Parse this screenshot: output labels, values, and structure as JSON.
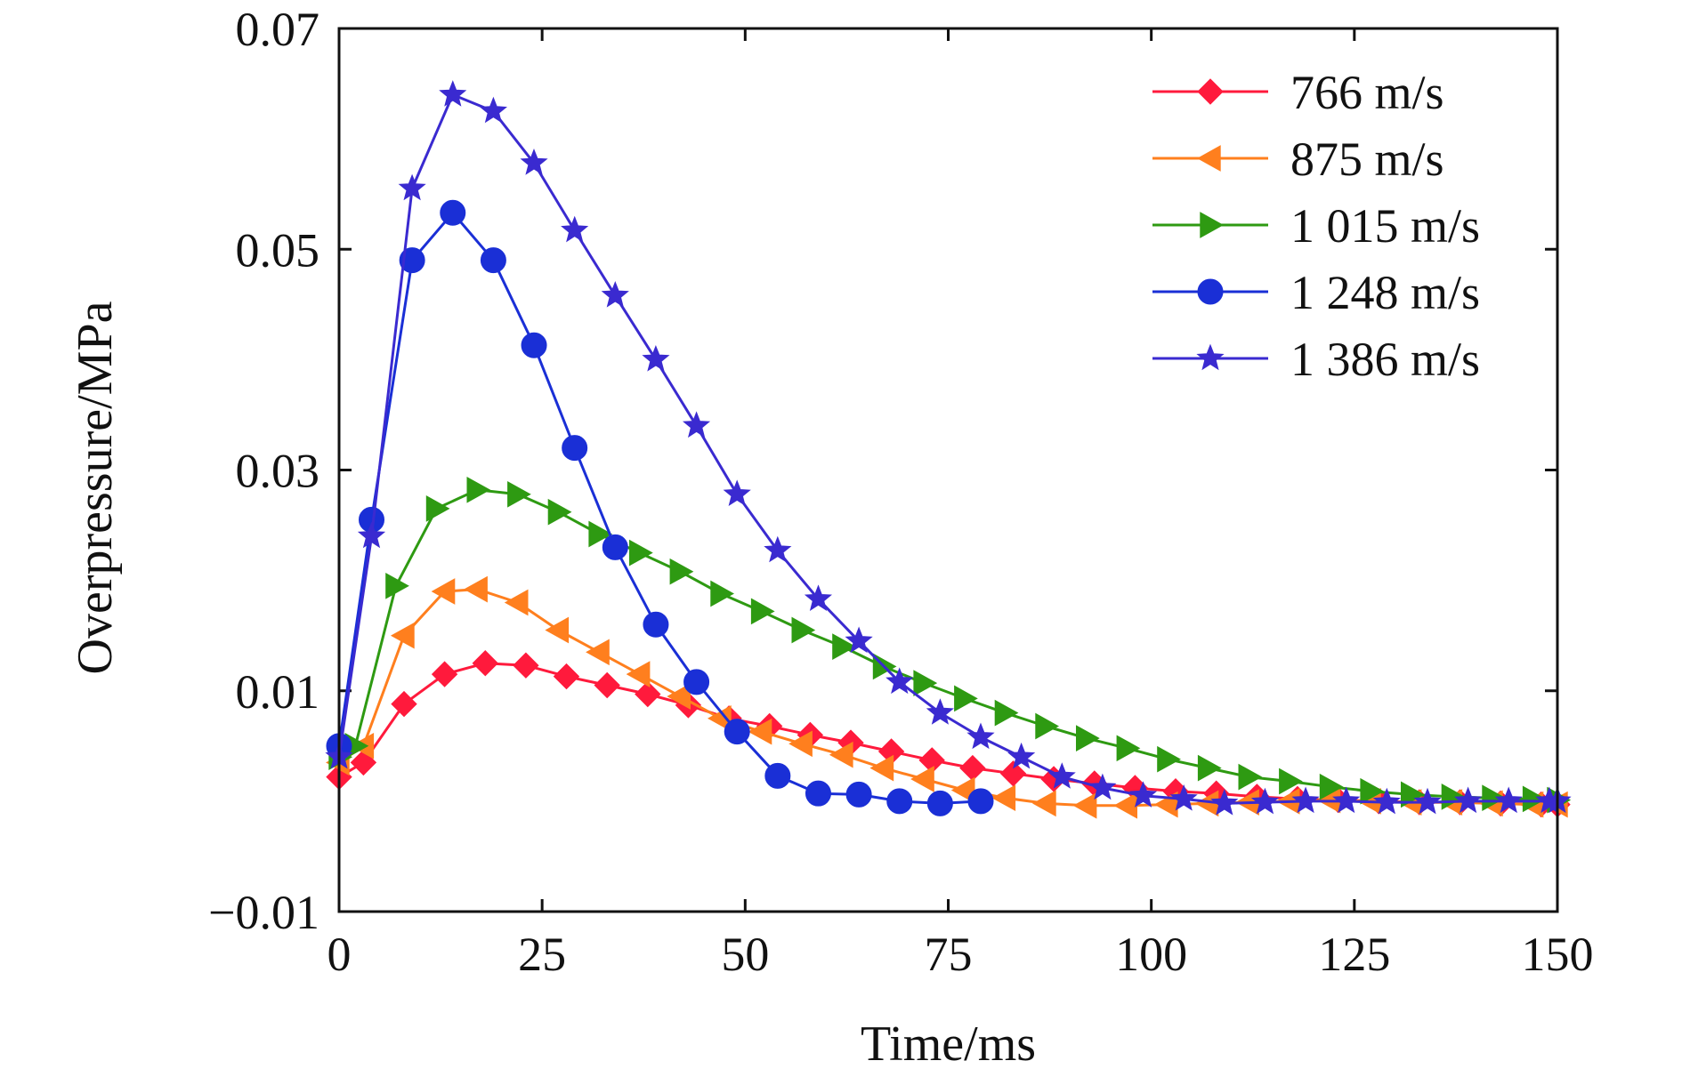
{
  "chart_data": {
    "type": "line",
    "title": "",
    "xlabel": "Time/ms",
    "ylabel": "Overpressure/MPa",
    "xlim": [
      0,
      150
    ],
    "ylim": [
      -0.01,
      0.07
    ],
    "xticks": [
      0,
      25,
      50,
      75,
      100,
      125,
      150
    ],
    "xtick_labels": [
      "0",
      "25",
      "50",
      "75",
      "100",
      "125",
      "150"
    ],
    "yticks": [
      -0.01,
      0.01,
      0.03,
      0.05,
      0.07
    ],
    "ytick_labels": [
      "−0.01",
      "0.01",
      "0.03",
      "0.05",
      "0.07"
    ],
    "grid": false,
    "legend_position": "top-right",
    "series": [
      {
        "name": "766 m/s",
        "color": "#ff1a3c",
        "marker": "diamond",
        "x": [
          0,
          3,
          8,
          13,
          18,
          23,
          28,
          33,
          38,
          43,
          48,
          53,
          58,
          63,
          68,
          73,
          78,
          83,
          88,
          93,
          98,
          103,
          108,
          113,
          118,
          123,
          128,
          133,
          138,
          143,
          148,
          150
        ],
        "y": [
          0.0022,
          0.0035,
          0.0088,
          0.0115,
          0.0125,
          0.0123,
          0.0113,
          0.0105,
          0.0097,
          0.0087,
          0.0075,
          0.0068,
          0.006,
          0.0053,
          0.0045,
          0.0037,
          0.003,
          0.0025,
          0.002,
          0.0016,
          0.0012,
          0.0009,
          0.0007,
          0.0004,
          0.0002,
          0.0001,
          0.0,
          -0.0001,
          -0.0001,
          -0.0002,
          -0.0003,
          -0.0003
        ]
      },
      {
        "name": "875 m/s",
        "color": "#ff7f1e",
        "marker": "triangle-left",
        "x": [
          0,
          3,
          8,
          13,
          17,
          22,
          27,
          32,
          37,
          42,
          47,
          52,
          57,
          62,
          67,
          72,
          77,
          82,
          87,
          92,
          97,
          102,
          107,
          112,
          117,
          122,
          127,
          132,
          137,
          142,
          147,
          150
        ],
        "y": [
          0.0035,
          0.005,
          0.015,
          0.019,
          0.0192,
          0.018,
          0.0155,
          0.0135,
          0.0115,
          0.0095,
          0.0075,
          0.0063,
          0.0052,
          0.0042,
          0.003,
          0.002,
          0.001,
          0.0003,
          -0.0002,
          -0.0004,
          -0.0004,
          -0.0003,
          -0.0002,
          -0.0001,
          0.0,
          0.0001,
          0.0,
          -0.0001,
          -0.0001,
          -0.0002,
          -0.0003,
          -0.0003
        ]
      },
      {
        "name": "1 015 m/s",
        "color": "#2e9a12",
        "marker": "triangle-right",
        "x": [
          0,
          2,
          7,
          12,
          17,
          22,
          27,
          32,
          37,
          42,
          47,
          52,
          57,
          62,
          67,
          72,
          77,
          82,
          87,
          92,
          97,
          102,
          107,
          112,
          117,
          122,
          127,
          132,
          137,
          142,
          147,
          150
        ],
        "y": [
          0.004,
          0.005,
          0.0195,
          0.0265,
          0.0282,
          0.0278,
          0.0262,
          0.0242,
          0.0225,
          0.0208,
          0.0188,
          0.0172,
          0.0155,
          0.014,
          0.0122,
          0.0107,
          0.0093,
          0.008,
          0.0068,
          0.0057,
          0.0048,
          0.0038,
          0.003,
          0.0022,
          0.0018,
          0.0013,
          0.0009,
          0.0006,
          0.0004,
          0.0003,
          0.0002,
          0.0001
        ]
      },
      {
        "name": "1 248 m/s",
        "color": "#1a2fd6",
        "marker": "circle",
        "x": [
          0,
          4,
          9,
          14,
          19,
          24,
          29,
          34,
          39,
          44,
          49,
          54,
          59,
          64,
          69,
          74,
          79
        ],
        "y": [
          0.005,
          0.0255,
          0.049,
          0.0533,
          0.049,
          0.0413,
          0.032,
          0.023,
          0.016,
          0.0108,
          0.0063,
          0.0023,
          0.0007,
          0.0006,
          0.0,
          -0.0002,
          0.0
        ]
      },
      {
        "name": "1 386 m/s",
        "color": "#3a2ad0",
        "marker": "star",
        "x": [
          0,
          4,
          9,
          14,
          19,
          24,
          29,
          34,
          39,
          44,
          49,
          54,
          59,
          64,
          69,
          74,
          79,
          84,
          89,
          94,
          99,
          104,
          109,
          114,
          119,
          124,
          129,
          134,
          139,
          144,
          149,
          150
        ],
        "y": [
          0.004,
          0.024,
          0.0555,
          0.064,
          0.0625,
          0.0578,
          0.0517,
          0.0458,
          0.04,
          0.034,
          0.0278,
          0.0227,
          0.0183,
          0.0145,
          0.0108,
          0.008,
          0.0058,
          0.004,
          0.0022,
          0.0012,
          0.0005,
          0.0002,
          -0.0002,
          -0.0001,
          0.0,
          0.0,
          -0.0001,
          -0.0001,
          0.0,
          0.0,
          0.0,
          0.0
        ]
      }
    ]
  }
}
